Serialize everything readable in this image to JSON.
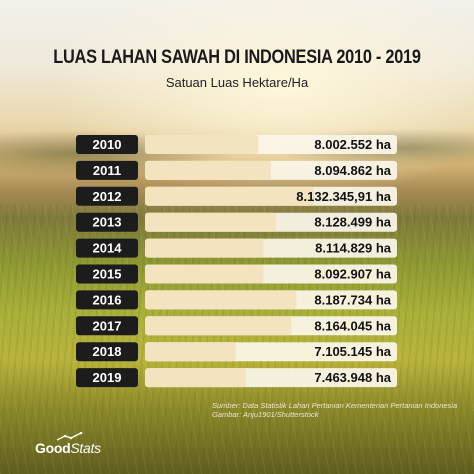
{
  "header": {
    "title": "LUAS LAHAN SAWAH DI INDONESIA 2010 - 2019",
    "subtitle": "Satuan Luas Hektare/Ha"
  },
  "footer": {
    "source_line1": "Sumber: Data Statistik Lahan Pertanian Kementerian Pertanian Indonesia",
    "source_line2": "Gambar: Anju1901/Shutterstock",
    "logo_good": "Good",
    "logo_stats": "Stats"
  },
  "colors": {
    "year_box": "#1c1c1c",
    "year_text": "#ffffff",
    "bar_track": "#fbf6ea",
    "bar_fill": "#f3e3bf",
    "value_text": "#111111"
  },
  "chart_data": {
    "type": "bar",
    "orientation": "horizontal",
    "title": "LUAS LAHAN SAWAH DI INDONESIA 2010 - 2019",
    "subtitle": "Satuan Luas Hektare/Ha",
    "categories": [
      "2010",
      "2011",
      "2012",
      "2013",
      "2014",
      "2015",
      "2016",
      "2017",
      "2018",
      "2019"
    ],
    "values": [
      8002552,
      8094862,
      8132345.91,
      8128499,
      8114829,
      8092907,
      8187734,
      8164045,
      7105145,
      7463948
    ],
    "value_labels": [
      "8.002.552 ha",
      "8.094.862 ha",
      "8.132.345,91 ha",
      "8.128.499 ha",
      "8.114.829 ha",
      "8.092.907 ha",
      "8.187.734 ha",
      "8.164.045 ha",
      "7.105.145 ha",
      "7.463.948 ha"
    ],
    "fill_fraction": [
      0.45,
      0.5,
      0.67,
      0.52,
      0.47,
      0.47,
      0.6,
      0.58,
      0.36,
      0.4
    ],
    "grid": false,
    "legend": "none"
  }
}
